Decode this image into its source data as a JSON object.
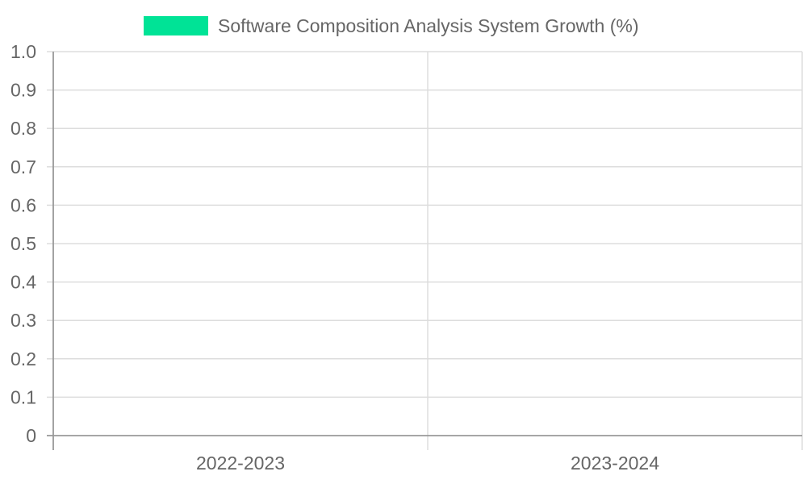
{
  "chart_data": {
    "type": "bar",
    "title": "",
    "xlabel": "",
    "ylabel": "",
    "categories": [
      "2022-2023",
      "2023-2024"
    ],
    "series": [
      {
        "name": "Software Composition Analysis System Growth (%)",
        "values": [
          null,
          null
        ],
        "color": "#00e396"
      }
    ],
    "ylim": [
      0,
      1.0
    ],
    "yticks": [
      "0",
      "0.1",
      "0.2",
      "0.3",
      "0.4",
      "0.5",
      "0.6",
      "0.7",
      "0.8",
      "0.9",
      "1.0"
    ],
    "legend_position": "top-center",
    "grid": true
  },
  "colors": {
    "grid": "#dddddd",
    "axis": "#999999",
    "text": "#666666"
  }
}
